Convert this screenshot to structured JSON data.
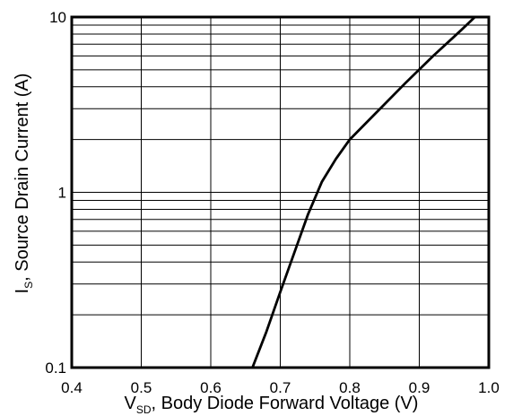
{
  "chart_data": {
    "type": "line",
    "title": "",
    "xlabel": {
      "main": "V",
      "sub": "SD",
      "rest": ", Body Diode Forward Voltage (V)"
    },
    "ylabel": {
      "main": "I",
      "sub": "S",
      "rest": ", Source Drain Current (A)"
    },
    "x_scale": "linear",
    "y_scale": "log",
    "xlim": [
      0.4,
      1.0
    ],
    "ylim": [
      0.1,
      10
    ],
    "x_ticks": [
      "0.4",
      "0.5",
      "0.6",
      "0.7",
      "0.8",
      "0.9",
      "1.0"
    ],
    "x_tick_values": [
      0.4,
      0.5,
      0.6,
      0.7,
      0.8,
      0.9,
      1.0
    ],
    "y_ticks": [
      "0.1",
      "1",
      "10"
    ],
    "y_tick_values": [
      0.1,
      1,
      10
    ],
    "grid": true,
    "series": [
      {
        "x": [
          0.66,
          0.68,
          0.7,
          0.72,
          0.74,
          0.76,
          0.78,
          0.8,
          0.84,
          0.88,
          0.92,
          0.96,
          0.98
        ],
        "y": [
          0.1,
          0.16,
          0.27,
          0.45,
          0.75,
          1.15,
          1.55,
          2.0,
          2.9,
          4.2,
          6.0,
          8.4,
          10.0
        ]
      }
    ]
  }
}
